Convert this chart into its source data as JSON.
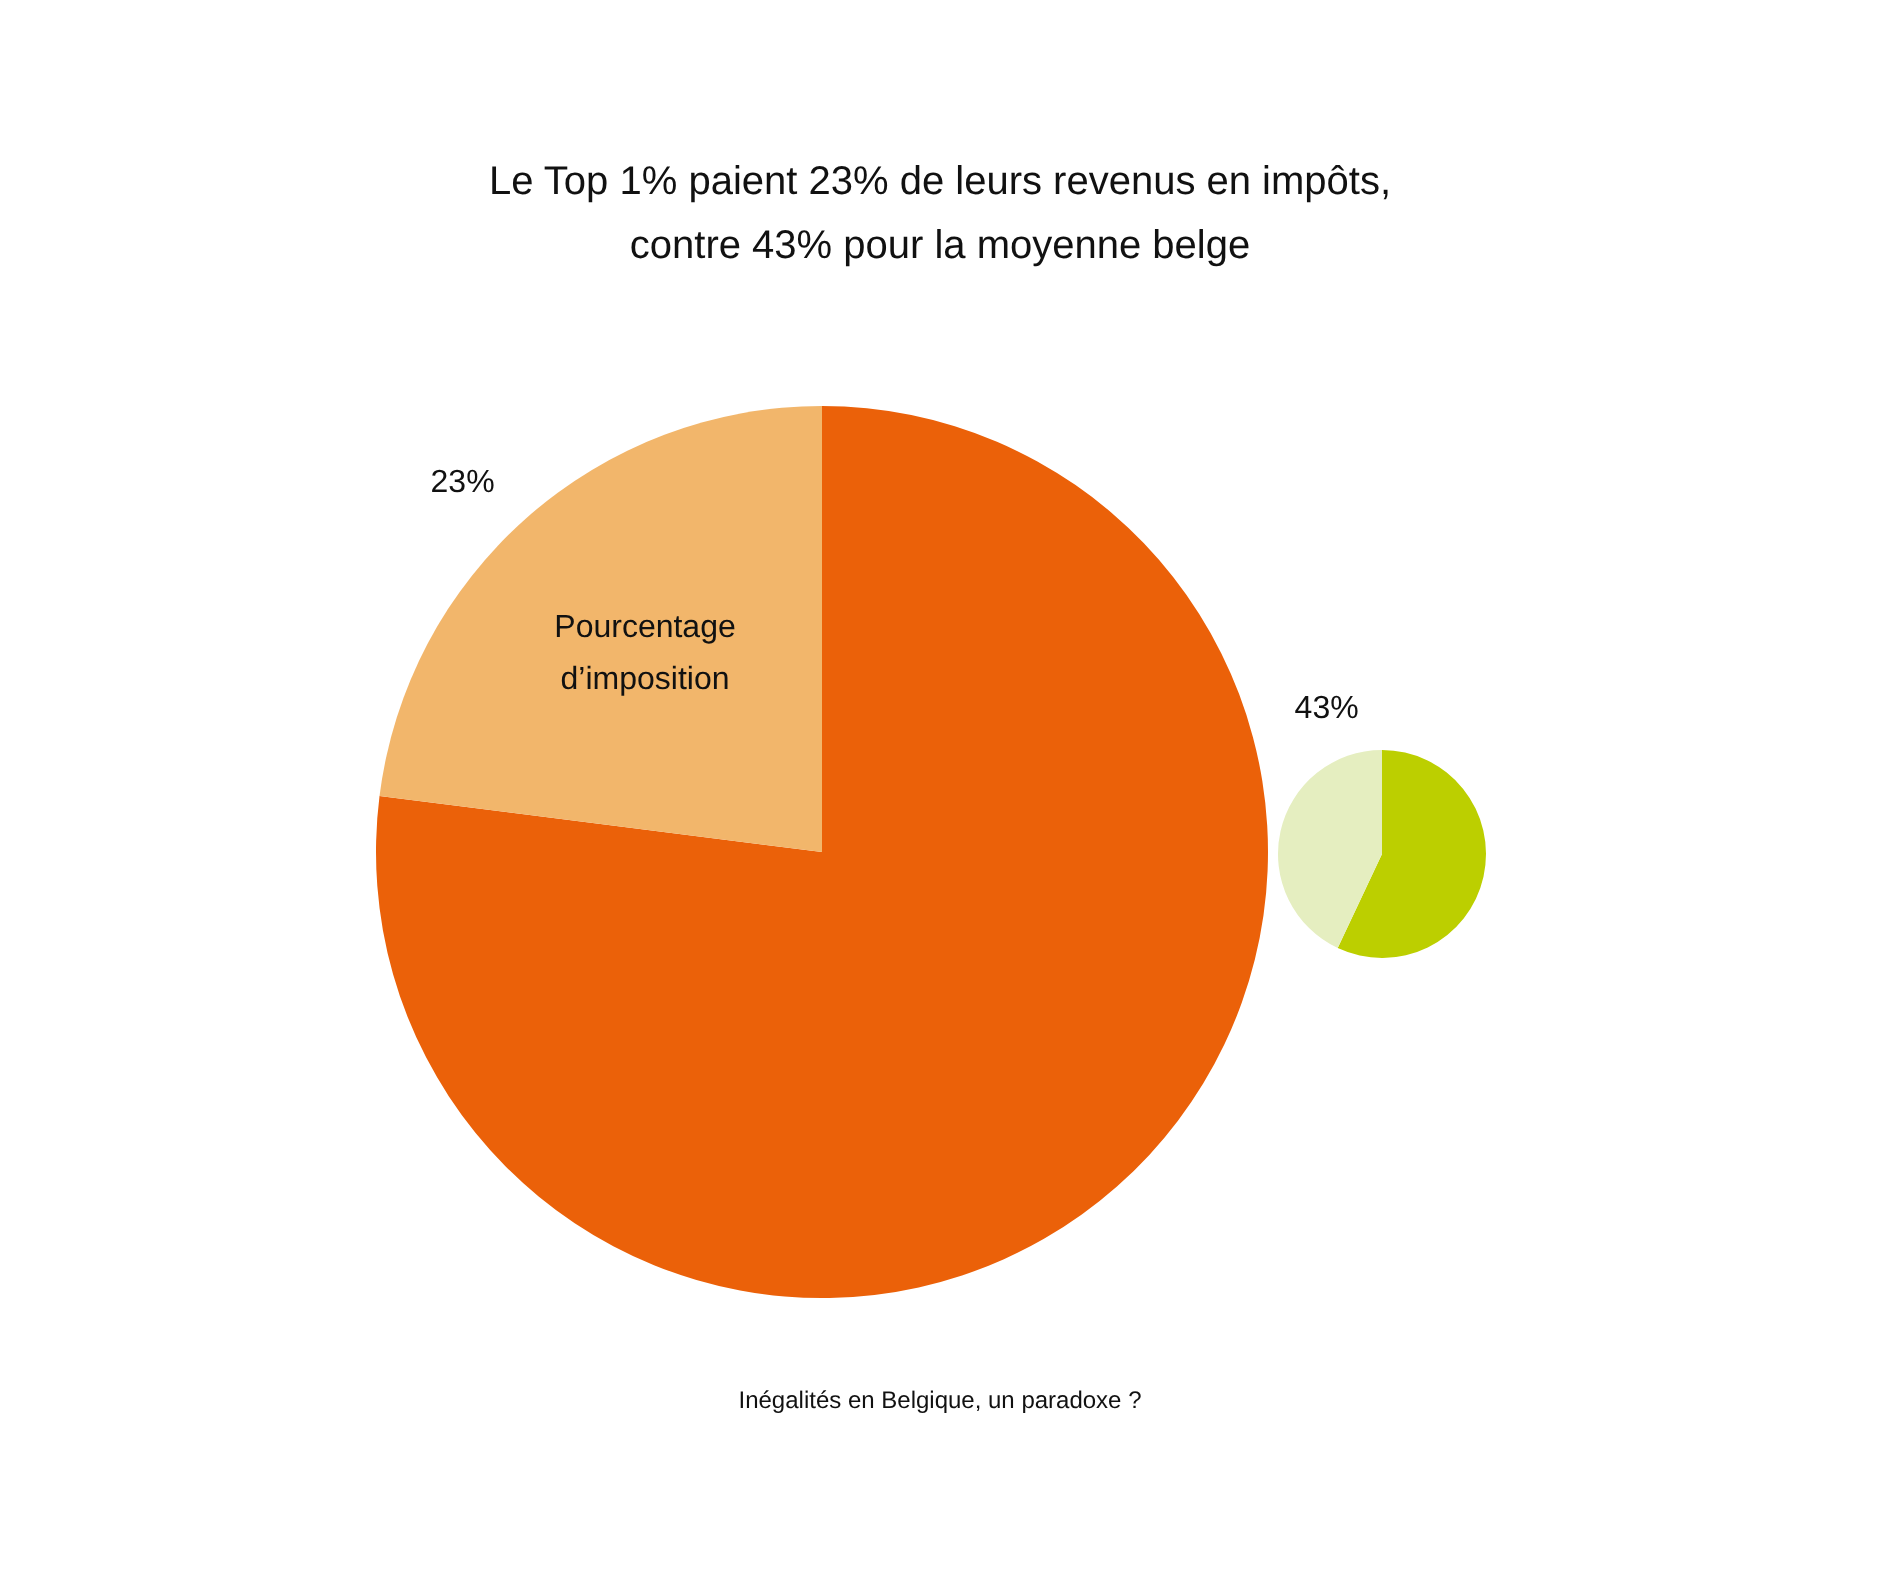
{
  "chart_data": [
    {
      "type": "pie",
      "title": "Le Top 1% paient 23% de leurs revenus en impôts,\ncontre 43% pour la moyenne belge",
      "categories": [
        null,
        "Pourcentage d’imposition"
      ],
      "values": [
        77,
        23
      ],
      "colors": [
        "#eb6109",
        "#f2b66b"
      ],
      "value_labels": [
        null,
        "23%"
      ],
      "annotations": [
        "Inégalités en Belgique, un paradoxe ?"
      ]
    },
    {
      "type": "pie",
      "categories": [
        null,
        null
      ],
      "values": [
        57,
        43
      ],
      "colors": [
        "#bccf00",
        "#e5eec0"
      ],
      "value_labels": [
        null,
        "43%"
      ]
    }
  ]
}
